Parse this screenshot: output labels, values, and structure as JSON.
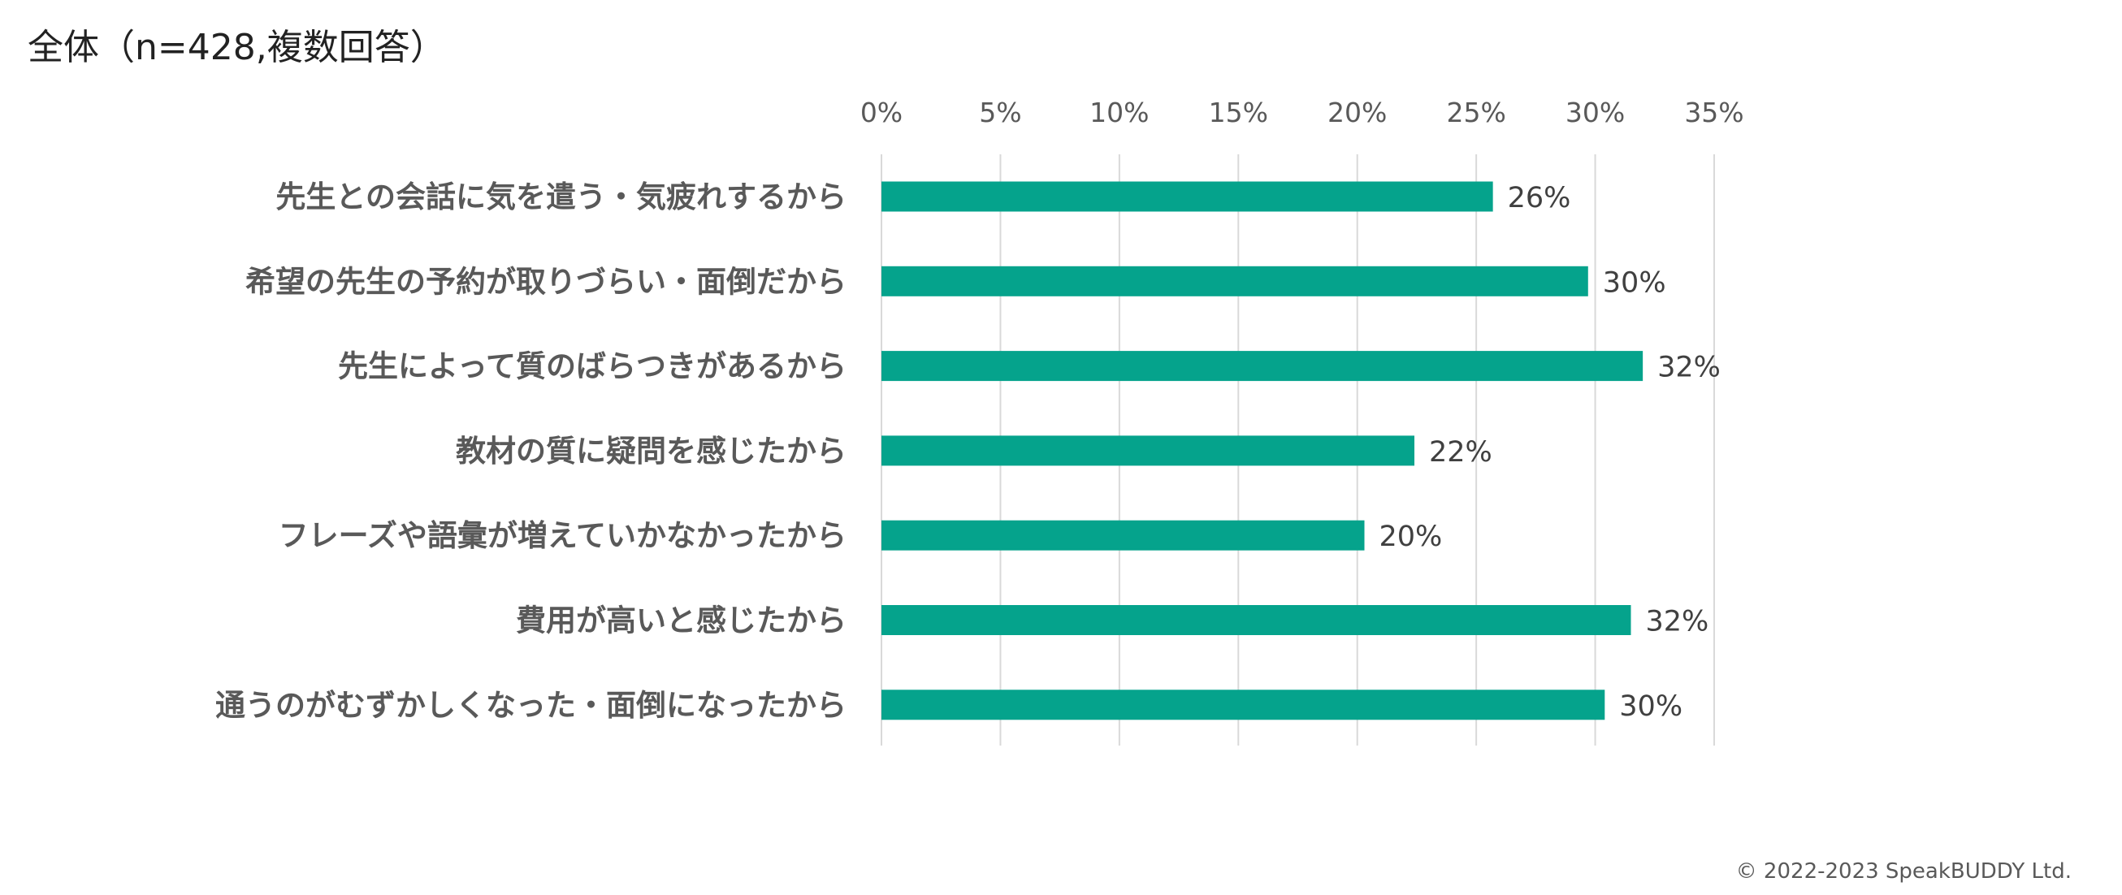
{
  "title": "全体（n=428,複数回答）",
  "copyright": "© 2022-2023 SpeakBUDDY Ltd.",
  "colors": {
    "bar": "#05A38C",
    "grid": "#D9D9D9"
  },
  "chart_data": {
    "type": "bar",
    "orientation": "horizontal",
    "title": "全体（n=428,複数回答）",
    "categories": [
      "先生との会話に気を遣う・気疲れするから",
      "希望の先生の予約が取りづらい・面倒だから",
      "先生によって質のばらつきがあるから",
      "教材の質に疑問を感じたから",
      "フレーズや語彙が増えていかなかったから",
      "費用が高いと感じたから",
      "通うのがむずかしくなった・面倒になったから"
    ],
    "values": [
      25.7,
      29.7,
      32.0,
      22.4,
      20.3,
      31.5,
      30.4
    ],
    "data_labels": [
      "26%",
      "30%",
      "32%",
      "22%",
      "20%",
      "32%",
      "30%"
    ],
    "xlim": [
      0,
      35
    ],
    "x_ticks": [
      0,
      5,
      10,
      15,
      20,
      25,
      30,
      35
    ],
    "x_tick_labels": [
      "0%",
      "5%",
      "10%",
      "15%",
      "20%",
      "25%",
      "30%",
      "35%"
    ],
    "axis_position": "top",
    "grid": true,
    "legend": "none"
  }
}
